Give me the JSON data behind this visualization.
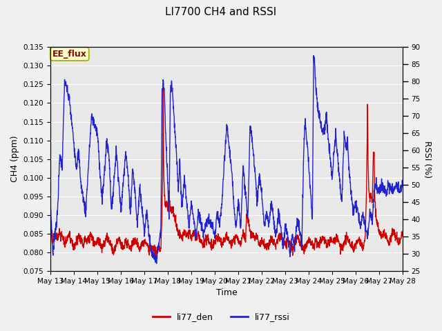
{
  "title": "LI7700 CH4 and RSSI",
  "xlabel": "Time",
  "ylabel_left": "CH4 (ppm)",
  "ylabel_right": "RSSI (%)",
  "annotation": "EE_flux",
  "legend_labels": [
    "li77_den",
    "li77_rssi"
  ],
  "colors": [
    "#cc0000",
    "#2222cc"
  ],
  "ylim_left": [
    0.075,
    0.135
  ],
  "ylim_right": [
    25,
    90
  ],
  "yticks_left": [
    0.075,
    0.08,
    0.085,
    0.09,
    0.095,
    0.1,
    0.105,
    0.11,
    0.115,
    0.12,
    0.125,
    0.13,
    0.135
  ],
  "yticks_right": [
    25,
    30,
    35,
    40,
    45,
    50,
    55,
    60,
    65,
    70,
    75,
    80,
    85,
    90
  ],
  "background_color": "#f0f0f0",
  "plot_bg_color": "#e8e8e8",
  "title_fontsize": 11,
  "axis_label_fontsize": 9,
  "tick_fontsize": 7.5,
  "legend_fontsize": 9,
  "annotation_fontsize": 9,
  "linewidth": 1.0,
  "figsize": [
    6.4,
    4.8
  ],
  "dpi": 100
}
